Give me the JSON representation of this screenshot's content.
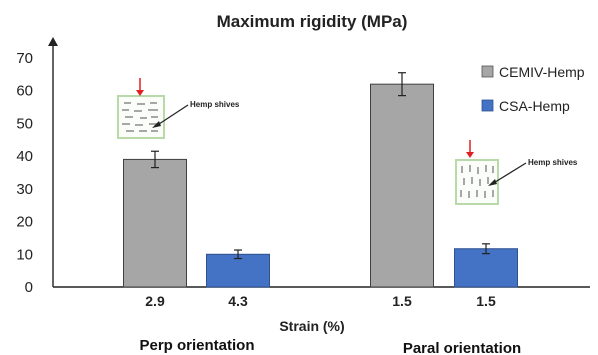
{
  "chart_data": {
    "type": "bar",
    "title": "Maximum rigidity (MPa)",
    "xlabel": "Strain (%)",
    "ylabel": "",
    "ylim": [
      0,
      70
    ],
    "yticks": [
      0,
      10,
      20,
      30,
      40,
      50,
      60,
      70
    ],
    "grid": false,
    "legend_position": "right",
    "groups": [
      {
        "label": "Perp orientation",
        "strain_labels": [
          "2.9",
          "4.3"
        ]
      },
      {
        "label": "Paral orientation",
        "strain_labels": [
          "1.5",
          "1.5"
        ]
      }
    ],
    "series": [
      {
        "name": "CEMIV-Hemp",
        "color": "#a6a6a6",
        "values": [
          39,
          62
        ],
        "errors": [
          2.5,
          3.5
        ]
      },
      {
        "name": "CSA-Hemp",
        "color": "#4472c4",
        "values": [
          10,
          11.7
        ],
        "errors": [
          1.3,
          1.5
        ]
      }
    ],
    "annotations": [
      {
        "text": "Hemp shives",
        "icon": "perpendicular-shives-sample-icon"
      },
      {
        "text": "Hemp shives",
        "icon": "parallel-shives-sample-icon"
      }
    ]
  }
}
